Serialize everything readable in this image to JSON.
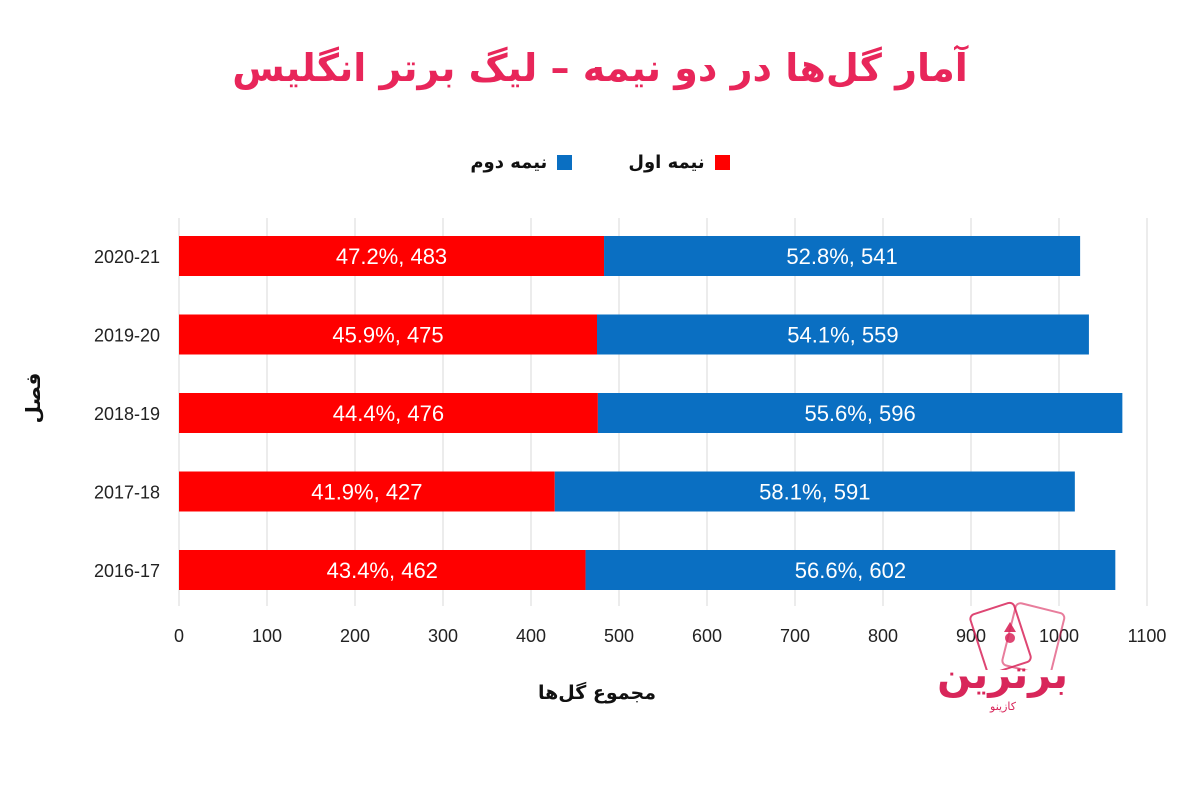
{
  "title": "آمار گل‌ها در دو نیمه – لیگ برتر انگلیس",
  "legend": [
    {
      "label": "نیمه اول",
      "color": "#ff0000"
    },
    {
      "label": "نیمه دوم",
      "color": "#0a6fc2"
    }
  ],
  "logo": {
    "word": "برترین",
    "sub": "کازینو",
    "color": "#d8265a"
  },
  "chart_data": {
    "type": "bar",
    "orientation": "horizontal",
    "stacked": true,
    "title": "آمار گل‌ها در دو نیمه – لیگ برتر انگلیس",
    "xlabel": "مجموع گل‌ها",
    "ylabel": "فصل",
    "xlim": [
      0,
      1100
    ],
    "xticks": [
      0,
      100,
      200,
      300,
      400,
      500,
      600,
      700,
      800,
      900,
      1000,
      1100
    ],
    "grid": true,
    "legend_position": "top-center",
    "categories": [
      "2020-21",
      "2019-20",
      "2018-19",
      "2017-18",
      "2016-17"
    ],
    "series": [
      {
        "name": "نیمه اول",
        "color": "#ff0000",
        "values": [
          483,
          475,
          476,
          427,
          462
        ],
        "labels": [
          "47.2%, 483",
          "45.9%, 475",
          "44.4%, 476",
          "41.9%, 427",
          "43.4%, 462"
        ]
      },
      {
        "name": "نیمه دوم",
        "color": "#0a6fc2",
        "values": [
          541,
          559,
          596,
          591,
          602
        ],
        "labels": [
          "52.8%, 541",
          "54.1%, 559",
          "55.6%, 596",
          "58.1%, 591",
          "56.6%, 602"
        ]
      }
    ]
  }
}
